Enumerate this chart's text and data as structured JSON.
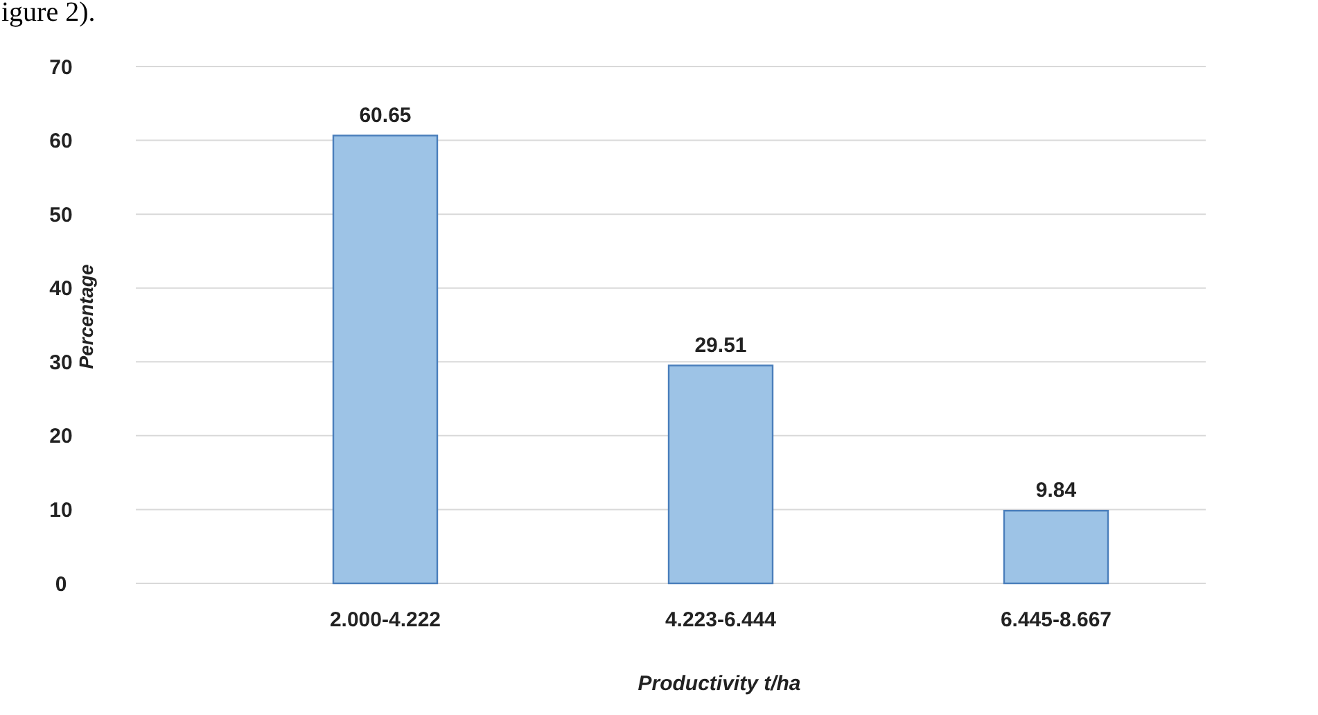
{
  "chart_data": {
    "type": "bar",
    "xlabel": "Productivity t/ha",
    "ylabel": "Percentage",
    "categories": [
      "2.000-4.222",
      "4.223-6.444",
      "6.445-8.667"
    ],
    "values": [
      60.65,
      29.51,
      9.84
    ],
    "color": "#9dc3e6",
    "ylim": [
      0,
      70
    ],
    "yticks": [
      0,
      10,
      20,
      30,
      40,
      50,
      60,
      70
    ],
    "grid": "y",
    "data_labels": true,
    "annotations": [
      "igure 2)."
    ]
  }
}
